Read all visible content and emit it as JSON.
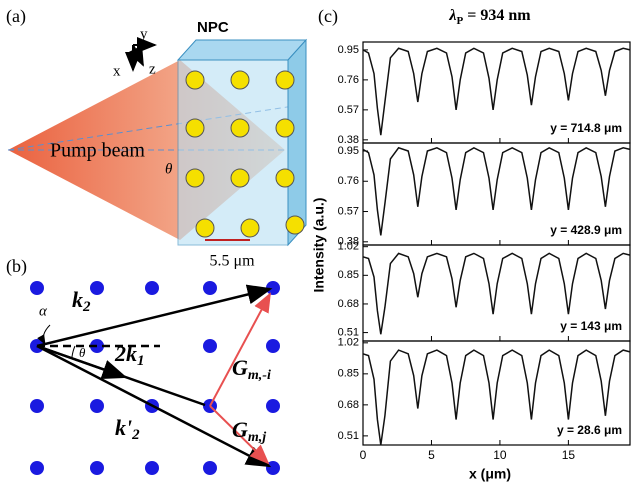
{
  "panel_a": {
    "label": "(a)",
    "npc": "NPC",
    "beam": "Pump beam",
    "theta": "θ",
    "scale": "5.5 μm",
    "axis_x": "x",
    "axis_y": "y",
    "axis_z": "z"
  },
  "panel_b": {
    "label": "(b)",
    "k2": {
      "main": "k",
      "sub": "2"
    },
    "alpha": "α",
    "theta": "θ",
    "k1": {
      "main": "2k",
      "sub": "1"
    },
    "k2p": {
      "main": "k'",
      "sub": "2"
    },
    "g1": {
      "main": "G",
      "sub": "m,-i"
    },
    "g2": {
      "main": "G",
      "sub": "m,j"
    }
  },
  "panel_c": {
    "label": "(c)",
    "title_symbol": "λ",
    "title_sub": "P",
    "title_rest": " = 934 nm",
    "ylabel": "Intensity (a.u.)",
    "xlabel": "x (μm)"
  },
  "chart_data": [
    {
      "type": "line",
      "annotation": "y = 714.8 μm",
      "color": "#111111",
      "xlim": [
        0,
        19.5
      ],
      "xticks": [
        0,
        5,
        10,
        15
      ],
      "ylim": [
        0.36,
        1.0
      ],
      "yticks": [
        0.38,
        0.57,
        0.76,
        0.95
      ],
      "x": [
        0,
        0.4,
        0.8,
        1.05,
        1.3,
        1.6,
        2.0,
        2.6,
        3.3,
        3.7,
        4.0,
        4.3,
        4.7,
        5.4,
        6.1,
        6.5,
        6.8,
        7.1,
        7.5,
        8.1,
        8.8,
        9.2,
        9.5,
        9.8,
        10.2,
        10.9,
        11.6,
        12.0,
        12.3,
        12.6,
        13.0,
        13.6,
        14.3,
        14.7,
        15.0,
        15.3,
        15.7,
        16.3,
        17.0,
        17.4,
        17.7,
        18.0,
        18.4,
        19.0,
        19.5
      ],
      "values": [
        0.95,
        0.93,
        0.8,
        0.58,
        0.41,
        0.62,
        0.9,
        0.96,
        0.94,
        0.8,
        0.62,
        0.8,
        0.94,
        0.96,
        0.93,
        0.78,
        0.57,
        0.76,
        0.93,
        0.96,
        0.93,
        0.77,
        0.57,
        0.76,
        0.93,
        0.96,
        0.94,
        0.79,
        0.6,
        0.78,
        0.94,
        0.96,
        0.94,
        0.8,
        0.63,
        0.8,
        0.94,
        0.96,
        0.94,
        0.82,
        0.66,
        0.82,
        0.94,
        0.96,
        0.95
      ]
    },
    {
      "type": "line",
      "annotation": "y = 428.9 μm",
      "color": "#111111",
      "xlim": [
        0,
        19.5
      ],
      "xticks": [
        0,
        5,
        10,
        15
      ],
      "ylim": [
        0.36,
        1.0
      ],
      "yticks": [
        0.38,
        0.57,
        0.76,
        0.95
      ],
      "x": [
        0,
        0.4,
        0.8,
        1.05,
        1.3,
        1.6,
        2.0,
        2.6,
        3.3,
        3.7,
        4.0,
        4.3,
        4.7,
        5.4,
        6.1,
        6.5,
        6.8,
        7.1,
        7.5,
        8.1,
        8.8,
        9.2,
        9.5,
        9.8,
        10.2,
        10.9,
        11.6,
        12.0,
        12.3,
        12.6,
        13.0,
        13.6,
        14.3,
        14.7,
        15.0,
        15.3,
        15.7,
        16.3,
        17.0,
        17.4,
        17.7,
        18.0,
        18.4,
        19.0,
        19.5
      ],
      "values": [
        0.96,
        0.94,
        0.8,
        0.58,
        0.42,
        0.62,
        0.9,
        0.97,
        0.95,
        0.8,
        0.6,
        0.79,
        0.95,
        0.97,
        0.94,
        0.78,
        0.58,
        0.77,
        0.94,
        0.97,
        0.94,
        0.78,
        0.58,
        0.77,
        0.94,
        0.97,
        0.94,
        0.78,
        0.58,
        0.77,
        0.94,
        0.97,
        0.94,
        0.78,
        0.58,
        0.78,
        0.94,
        0.97,
        0.94,
        0.79,
        0.6,
        0.79,
        0.95,
        0.97,
        0.96
      ]
    },
    {
      "type": "line",
      "annotation": "y = 143 μm",
      "color": "#111111",
      "xlim": [
        0,
        19.5
      ],
      "xticks": [
        0,
        5,
        10,
        15
      ],
      "ylim": [
        0.46,
        1.03
      ],
      "yticks": [
        0.51,
        0.68,
        0.85,
        1.02
      ],
      "x": [
        0,
        0.4,
        0.8,
        1.05,
        1.3,
        1.6,
        2.0,
        2.6,
        3.3,
        3.7,
        4.0,
        4.3,
        4.7,
        5.4,
        6.1,
        6.5,
        6.8,
        7.1,
        7.5,
        8.1,
        8.8,
        9.2,
        9.5,
        9.8,
        10.2,
        10.9,
        11.6,
        12.0,
        12.3,
        12.6,
        13.0,
        13.6,
        14.3,
        14.7,
        15.0,
        15.3,
        15.7,
        16.3,
        17.0,
        17.4,
        17.7,
        18.0,
        18.4,
        19.0,
        19.5
      ],
      "values": [
        0.96,
        0.95,
        0.84,
        0.64,
        0.5,
        0.66,
        0.92,
        0.98,
        0.96,
        0.86,
        0.72,
        0.86,
        0.96,
        0.98,
        0.96,
        0.83,
        0.66,
        0.82,
        0.96,
        0.98,
        0.95,
        0.8,
        0.62,
        0.8,
        0.95,
        0.98,
        0.95,
        0.8,
        0.62,
        0.8,
        0.95,
        0.98,
        0.95,
        0.8,
        0.62,
        0.8,
        0.95,
        0.98,
        0.95,
        0.82,
        0.65,
        0.82,
        0.95,
        0.98,
        0.97
      ]
    },
    {
      "type": "line",
      "annotation": "y = 28.6 μm",
      "color": "#111111",
      "xlim": [
        0,
        19.5
      ],
      "xticks": [
        0,
        5,
        10,
        15
      ],
      "ylim": [
        0.46,
        1.03
      ],
      "yticks": [
        0.51,
        0.68,
        0.85,
        1.02
      ],
      "x": [
        0,
        0.4,
        0.8,
        1.05,
        1.3,
        1.6,
        2.0,
        2.6,
        3.3,
        3.7,
        4.0,
        4.3,
        4.7,
        5.4,
        6.1,
        6.5,
        6.8,
        7.1,
        7.5,
        8.1,
        8.8,
        9.2,
        9.5,
        9.8,
        10.2,
        10.9,
        11.6,
        12.0,
        12.3,
        12.6,
        13.0,
        13.6,
        14.3,
        14.7,
        15.0,
        15.3,
        15.7,
        16.3,
        17.0,
        17.4,
        17.7,
        18.0,
        18.4,
        19.0,
        19.5
      ],
      "values": [
        0.96,
        0.95,
        0.82,
        0.6,
        0.46,
        0.62,
        0.92,
        0.98,
        0.96,
        0.84,
        0.66,
        0.84,
        0.96,
        0.98,
        0.95,
        0.8,
        0.6,
        0.8,
        0.95,
        0.98,
        0.95,
        0.8,
        0.6,
        0.8,
        0.95,
        0.98,
        0.95,
        0.8,
        0.6,
        0.8,
        0.95,
        0.98,
        0.95,
        0.8,
        0.6,
        0.8,
        0.95,
        0.98,
        0.95,
        0.81,
        0.62,
        0.81,
        0.95,
        0.98,
        0.97
      ]
    }
  ]
}
